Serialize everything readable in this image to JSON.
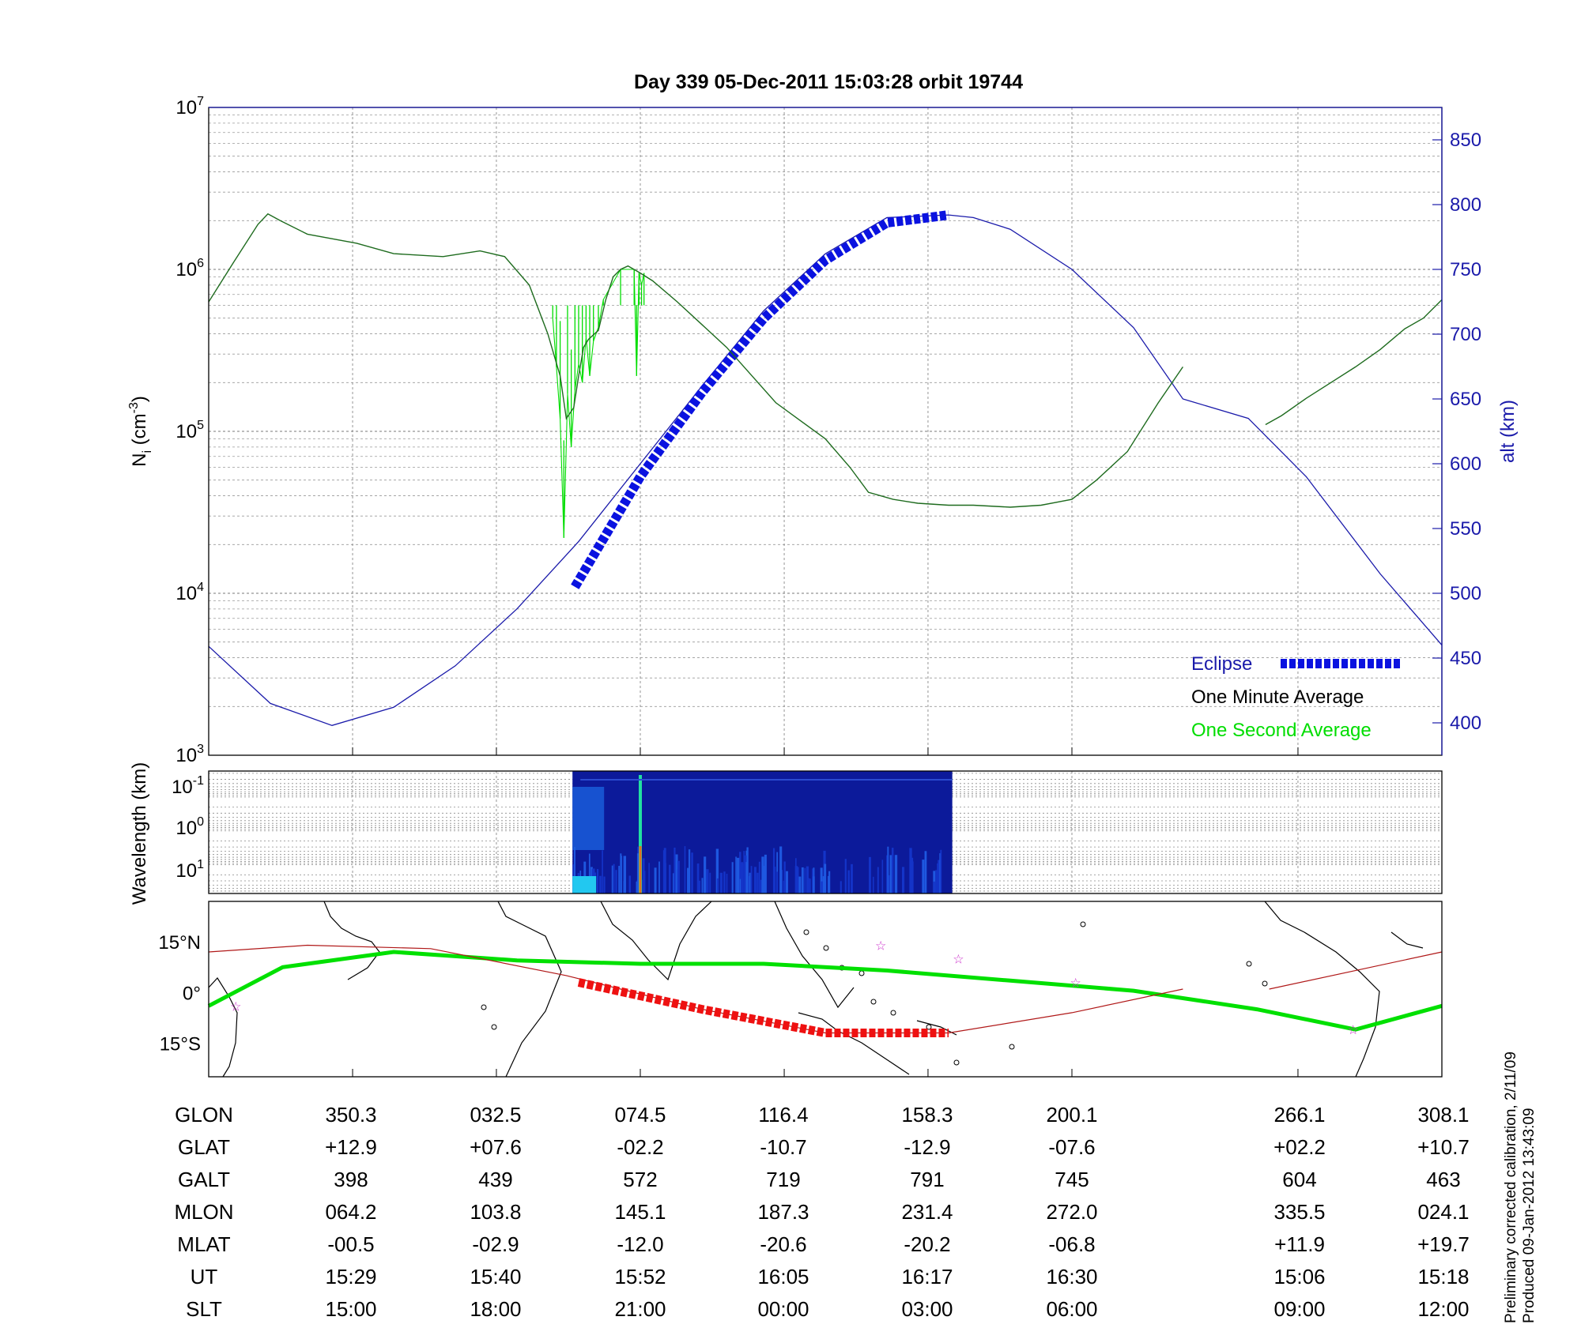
{
  "figure": {
    "title": "Day 339  05-Dec-2011 15:03:28   orbit 19744",
    "side_note_1": "Preliminary corrected calibration, 2/11/09",
    "side_note_2": "Produced 09-Jan-2012 13:43:09"
  },
  "colors": {
    "one_minute": "#1e6b1e",
    "one_second": "#00dd00",
    "altitude": "#1a1aaa",
    "eclipse": "#0a12e0",
    "ground_track": "#00e000",
    "dip_equator": "#b01818",
    "eclipse_track": "#ee1111",
    "star_markers": "#cc33cc"
  },
  "chart_data": [
    {
      "type": "line",
      "panel": "density",
      "ylabel_main": "N",
      "ylabel_sub": "i",
      "ylabel_unit": " (cm",
      "ylabel_exp": "-3",
      "ylabel_close": ")",
      "y2label": "alt (km)",
      "yscale": "log",
      "ylim": [
        1000,
        10000000
      ],
      "y_ticks": [
        "10^3",
        "10^4",
        "10^5",
        "10^6",
        "10^7"
      ],
      "y2lim": [
        375,
        875
      ],
      "y2_ticks": [
        400,
        450,
        500,
        550,
        600,
        650,
        700,
        750,
        800,
        850
      ],
      "xlim": [
        0,
        1
      ],
      "grid": true,
      "legend_position": "bottom-right",
      "legend": [
        "Eclipse",
        "One Minute Average",
        "One Second Average"
      ],
      "series": [
        {
          "name": "One Minute Average",
          "x": [
            0.0,
            0.02,
            0.04,
            0.048,
            0.058,
            0.08,
            0.12,
            0.15,
            0.19,
            0.22,
            0.24,
            0.26,
            0.275,
            0.285,
            0.29,
            0.296,
            0.3,
            0.304,
            0.308,
            0.316,
            0.322,
            0.328,
            0.334,
            0.34,
            0.35,
            0.36,
            0.38,
            0.42,
            0.46,
            0.5,
            0.52,
            0.535,
            0.555,
            0.575,
            0.6,
            0.62,
            0.65,
            0.675,
            0.7,
            0.72,
            0.745,
            0.77,
            0.79
          ],
          "y": [
            630000.0,
            1100000.0,
            1900000.0,
            2200000.0,
            2000000.0,
            1650000.0,
            1450000.0,
            1250000.0,
            1200000.0,
            1300000.0,
            1200000.0,
            800000.0,
            400000.0,
            220000.0,
            120000.0,
            140000.0,
            220000.0,
            330000.0,
            370000.0,
            420000.0,
            650000.0,
            900000.0,
            1000000.0,
            1050000.0,
            950000.0,
            850000.0,
            630000.0,
            330000.0,
            150000.0,
            90000.0,
            60000.0,
            42000.0,
            38000.0,
            36000.0,
            35000.0,
            35000.0,
            34000.0,
            35000.0,
            38000.0,
            50000.0,
            75000.0,
            150000.0,
            250000.0
          ]
        },
        {
          "name": "One Minute Average (after gap)",
          "x": [
            0.857,
            0.87,
            0.89,
            0.91,
            0.93,
            0.95,
            0.97,
            0.985,
            1.0
          ],
          "y": [
            110000.0,
            125000.0,
            160000.0,
            200000.0,
            250000.0,
            320000.0,
            430000.0,
            500000.0,
            650000.0
          ]
        },
        {
          "name": "One Second Average",
          "note": "spikes",
          "x": [
            0.279,
            0.282,
            0.285,
            0.288,
            0.291,
            0.294,
            0.297,
            0.3,
            0.303,
            0.306,
            0.309,
            0.312,
            0.316,
            0.32,
            0.334,
            0.345,
            0.347,
            0.349,
            0.351,
            0.353
          ],
          "y": [
            500000.0,
            250000.0,
            120000.0,
            22000.0,
            170000.0,
            80000.0,
            180000.0,
            260000.0,
            200000.0,
            380000.0,
            220000.0,
            360000.0,
            440000.0,
            650000.0,
            1000000.0,
            1000000.0,
            220000.0,
            950000.0,
            800000.0,
            950000.0
          ]
        },
        {
          "name": "Altitude",
          "axis": "right",
          "x": [
            0.0,
            0.05,
            0.1,
            0.15,
            0.2,
            0.25,
            0.3,
            0.35,
            0.4,
            0.45,
            0.5,
            0.55,
            0.6,
            0.62,
            0.65,
            0.7,
            0.75,
            0.79,
            0.843,
            0.89,
            0.95,
            1.0
          ],
          "y": [
            459,
            415,
            398,
            412,
            444,
            488,
            540,
            600,
            660,
            718,
            762,
            790,
            792,
            790,
            781,
            750,
            705,
            650,
            635,
            590,
            515,
            460
          ]
        },
        {
          "name": "Eclipse",
          "axis": "right",
          "x_range": [
            0.297,
            0.6
          ],
          "x": [
            0.297,
            0.35,
            0.4,
            0.45,
            0.5,
            0.55,
            0.6
          ],
          "y": [
            505,
            590,
            655,
            712,
            757,
            786,
            792
          ]
        }
      ]
    },
    {
      "type": "heatmap",
      "panel": "spectrogram",
      "ylabel": "Wavelength (km)",
      "yscale": "log",
      "y_ticks": [
        "10^-1",
        "10^0",
        "10^1"
      ],
      "x_range": [
        0.295,
        0.603
      ]
    },
    {
      "type": "line",
      "panel": "ground-track map",
      "y_ticks": [
        "15°N",
        "0°",
        "15°S"
      ],
      "ylim": [
        -25,
        27
      ],
      "series": [
        {
          "name": "Geographic latitude",
          "x": [
            0.0,
            0.06,
            0.15,
            0.25,
            0.35,
            0.45,
            0.55,
            0.65,
            0.75,
            0.85,
            0.93,
            1.0
          ],
          "y": [
            -4,
            7.5,
            12,
            9.5,
            8.5,
            8.5,
            6.5,
            3.5,
            0.5,
            -5,
            -11,
            -4
          ]
        },
        {
          "name": "Dip equator",
          "x": [
            0.0,
            0.08,
            0.18,
            0.29,
            0.4,
            0.5,
            0.6,
            0.7,
            0.79
          ],
          "y": [
            12,
            14,
            13,
            5,
            -5,
            -12,
            -12,
            -6,
            1
          ]
        },
        {
          "name": "Dip equator (after gap)",
          "x": [
            0.86,
            1.0
          ],
          "y": [
            1,
            12
          ]
        },
        {
          "name": "Eclipse track",
          "x": [
            0.3,
            0.4,
            0.5,
            0.6
          ],
          "y": [
            3,
            -5,
            -12,
            -12
          ]
        }
      ]
    },
    {
      "type": "table",
      "panel": "ephemeris",
      "rows": [
        {
          "label": "GLON",
          "values": [
            "350.3",
            "032.5",
            "074.5",
            "116.4",
            "158.3",
            "200.1",
            "266.1",
            "308.1"
          ]
        },
        {
          "label": "GLAT",
          "values": [
            "+12.9",
            "+07.6",
            "-02.2",
            "-10.7",
            "-12.9",
            "-07.6",
            "+02.2",
            "+10.7"
          ]
        },
        {
          "label": "GALT",
          "values": [
            "398",
            "439",
            "572",
            "719",
            "791",
            "745",
            "604",
            "463"
          ]
        },
        {
          "label": "MLON",
          "values": [
            "064.2",
            "103.8",
            "145.1",
            "187.3",
            "231.4",
            "272.0",
            "335.5",
            "024.1"
          ]
        },
        {
          "label": "MLAT",
          "values": [
            "-00.5",
            "-02.9",
            "-12.0",
            "-20.6",
            "-20.2",
            "-06.8",
            "+11.9",
            "+19.7"
          ]
        },
        {
          "label": "UT",
          "values": [
            "15:29",
            "15:40",
            "15:52",
            "16:05",
            "16:17",
            "16:30",
            "15:06",
            "15:18"
          ]
        },
        {
          "label": "SLT",
          "values": [
            "15:00",
            "18:00",
            "21:00",
            "00:00",
            "03:00",
            "06:00",
            "09:00",
            "12:00"
          ]
        }
      ]
    }
  ]
}
